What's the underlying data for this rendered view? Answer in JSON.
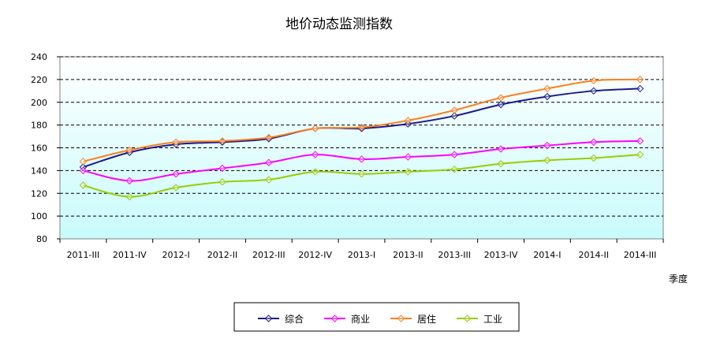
{
  "chart_data": {
    "type": "line",
    "title": "地价动态监测指数",
    "xlabel": "季度",
    "ylabel": "",
    "categories": [
      "2011-III",
      "2011-IV",
      "2012-I",
      "2012-II",
      "2012-III",
      "2012-IV",
      "2013-I",
      "2013-II",
      "2013-III",
      "2013-IV",
      "2014-I",
      "2014-II",
      "2014-III"
    ],
    "ylim": [
      80,
      240
    ],
    "yticks": [
      80,
      100,
      120,
      140,
      160,
      180,
      200,
      220,
      240
    ],
    "grid": "horizontal dashed",
    "background": "white-to-cyan gradient",
    "legend_position": "bottom",
    "series": [
      {
        "name": "综合",
        "color": "#1a1a8c",
        "values": [
          143,
          156,
          163,
          165,
          168,
          177,
          177,
          181,
          188,
          198,
          205,
          210,
          212
        ]
      },
      {
        "name": "商业",
        "color": "#ff00ff",
        "values": [
          140,
          131,
          137,
          142,
          147,
          154,
          150,
          152,
          154,
          159,
          162,
          165,
          166
        ]
      },
      {
        "name": "居住",
        "color": "#ff7f1f",
        "values": [
          148,
          158,
          165,
          166,
          169,
          177,
          178,
          184,
          193,
          204,
          212,
          219,
          220
        ]
      },
      {
        "name": "工业",
        "color": "#99cc00",
        "values": [
          127,
          117,
          125,
          130,
          132,
          139,
          137,
          139,
          141,
          146,
          149,
          151,
          154
        ]
      }
    ]
  }
}
